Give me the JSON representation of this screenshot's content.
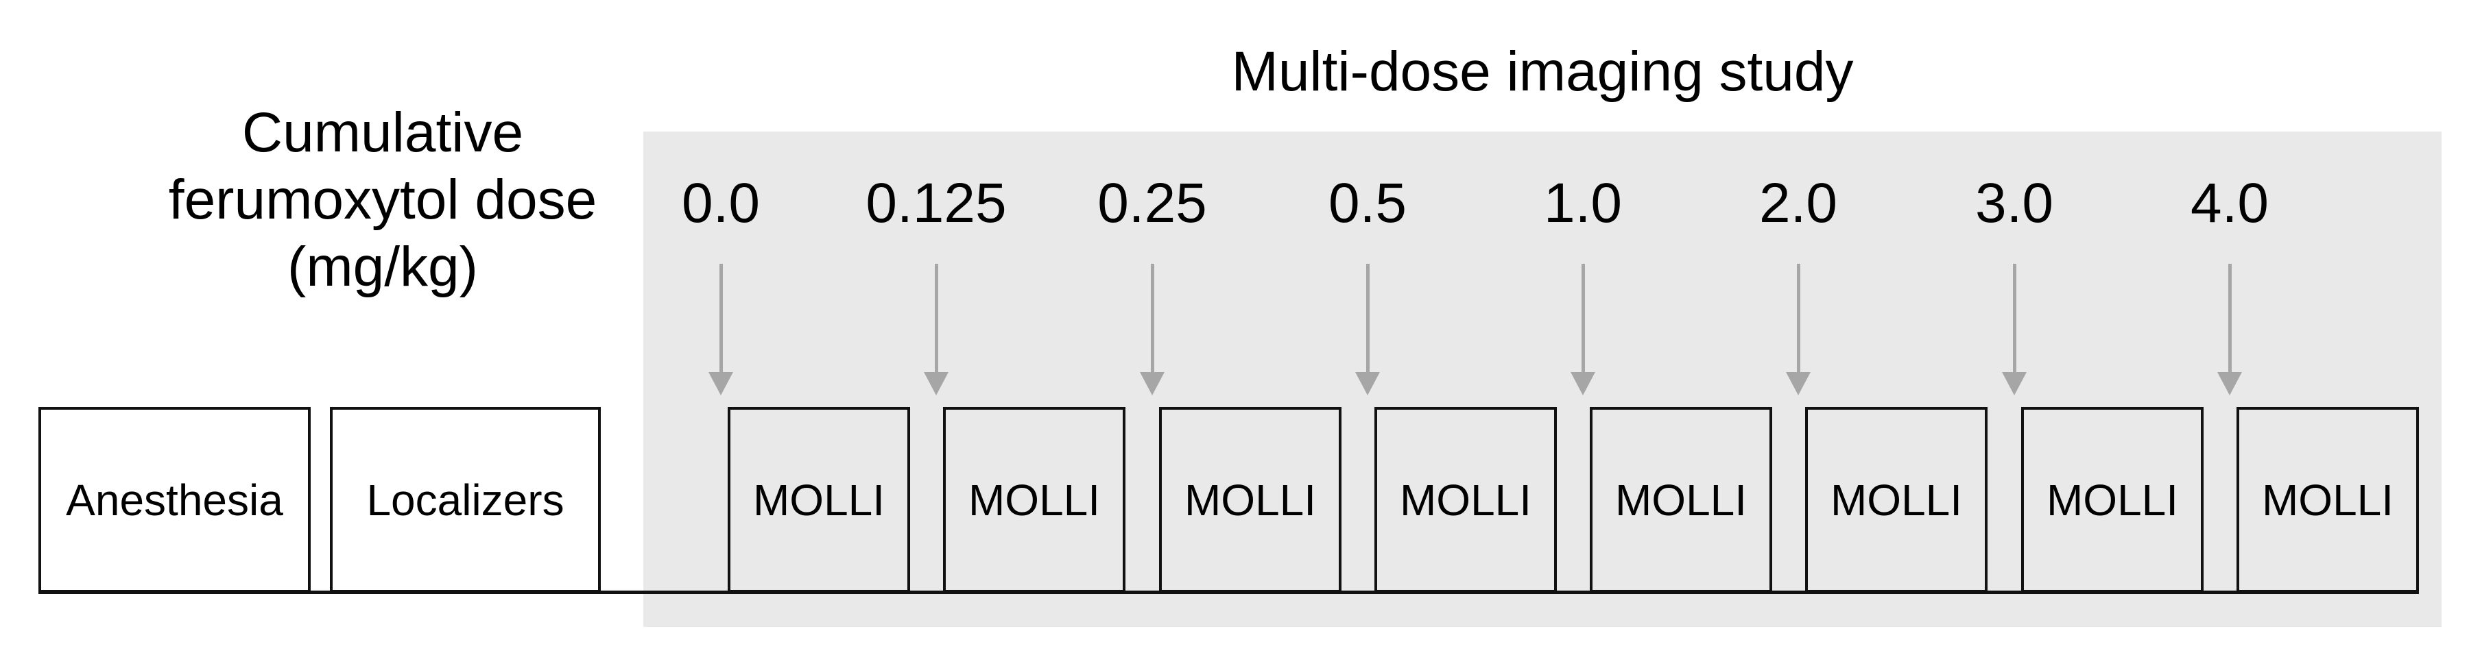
{
  "figure": {
    "title": "Multi-dose imaging study",
    "dose_axis": {
      "line1": "Cumulative",
      "line2": "ferumoxytol dose",
      "line3": "(mg/kg)"
    },
    "doses": [
      "0.0",
      "0.125",
      "0.25",
      "0.5",
      "1.0",
      "2.0",
      "3.0",
      "4.0"
    ],
    "prep_steps": [
      "Anesthesia",
      "Localizers"
    ],
    "scans": [
      "MOLLI",
      "MOLLI",
      "MOLLI",
      "MOLLI",
      "MOLLI",
      "MOLLI",
      "MOLLI",
      "MOLLI"
    ],
    "colors": {
      "panel_bg": "#e9e9e9",
      "arrow": "#a6a6a6",
      "box_border": "#111111",
      "text": "#000000",
      "background": "#ffffff"
    }
  }
}
